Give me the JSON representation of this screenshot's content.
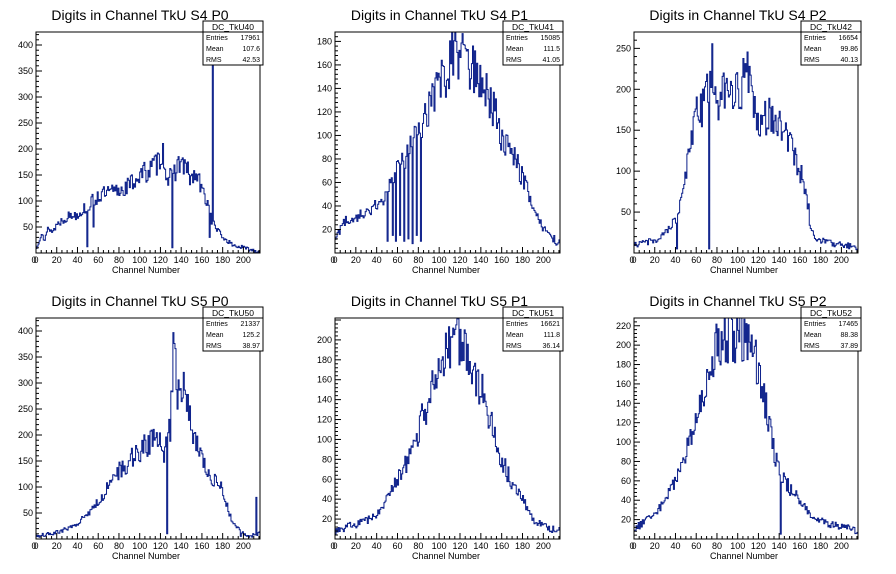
{
  "canvas": {
    "background": "#ffffff",
    "line_color": "#0b1f8a",
    "frame_color": "#000000"
  },
  "chart_data": [
    {
      "type": "histogram",
      "title": "Digits in Channel TkU S4 P0",
      "xlabel": "Channel Number",
      "ylabel": "",
      "xlim": [
        0,
        216
      ],
      "ylim": [
        0,
        425
      ],
      "xticks": [
        0,
        20,
        40,
        60,
        80,
        100,
        120,
        140,
        160,
        180,
        200
      ],
      "yticks": [
        50,
        100,
        150,
        200,
        250,
        300,
        350,
        400
      ],
      "stats": {
        "name": "DC_TkU40",
        "rows": [
          [
            "Entries",
            "17961"
          ],
          [
            "Mean",
            "107.6"
          ],
          [
            "RMS",
            "42.53"
          ]
        ]
      },
      "control_points": [
        [
          0,
          5
        ],
        [
          4,
          30
        ],
        [
          6,
          45
        ],
        [
          8,
          20
        ],
        [
          12,
          50
        ],
        [
          16,
          40
        ],
        [
          20,
          55
        ],
        [
          30,
          70
        ],
        [
          40,
          75
        ],
        [
          50,
          90
        ],
        [
          60,
          110
        ],
        [
          70,
          115
        ],
        [
          80,
          120
        ],
        [
          90,
          130
        ],
        [
          100,
          150
        ],
        [
          110,
          160
        ],
        [
          118,
          175
        ],
        [
          122,
          200
        ],
        [
          126,
          150
        ],
        [
          131,
          140
        ],
        [
          136,
          170
        ],
        [
          140,
          175
        ],
        [
          145,
          160
        ],
        [
          150,
          140
        ],
        [
          155,
          150
        ],
        [
          160,
          120
        ],
        [
          165,
          100
        ],
        [
          170,
          60
        ],
        [
          175,
          45
        ],
        [
          180,
          30
        ],
        [
          190,
          15
        ],
        [
          200,
          10
        ],
        [
          210,
          5
        ],
        [
          216,
          2
        ]
      ],
      "spikes": [
        [
          49,
          12
        ],
        [
          55,
          50
        ],
        [
          131,
          10
        ],
        [
          167,
          30
        ],
        [
          170,
          405
        ]
      ]
    },
    {
      "type": "histogram",
      "title": "Digits in Channel TkU S4 P1",
      "xlabel": "Channel Number",
      "ylabel": "",
      "xlim": [
        0,
        216
      ],
      "ylim": [
        0,
        188
      ],
      "xticks": [
        0,
        20,
        40,
        60,
        80,
        100,
        120,
        140,
        160,
        180,
        200
      ],
      "yticks": [
        20,
        40,
        60,
        80,
        100,
        120,
        140,
        160,
        180
      ],
      "stats": {
        "name": "DC_TkU41",
        "rows": [
          [
            "Entries",
            "15085"
          ],
          [
            "Mean",
            "111.5"
          ],
          [
            "RMS",
            "41.05"
          ]
        ]
      },
      "control_points": [
        [
          0,
          10
        ],
        [
          5,
          20
        ],
        [
          10,
          28
        ],
        [
          20,
          30
        ],
        [
          30,
          35
        ],
        [
          40,
          40
        ],
        [
          50,
          50
        ],
        [
          60,
          70
        ],
        [
          70,
          85
        ],
        [
          80,
          100
        ],
        [
          90,
          120
        ],
        [
          100,
          140
        ],
        [
          110,
          160
        ],
        [
          115,
          180
        ],
        [
          120,
          165
        ],
        [
          130,
          160
        ],
        [
          140,
          145
        ],
        [
          150,
          130
        ],
        [
          160,
          100
        ],
        [
          170,
          85
        ],
        [
          180,
          65
        ],
        [
          190,
          40
        ],
        [
          200,
          20
        ],
        [
          210,
          12
        ],
        [
          216,
          8
        ]
      ],
      "spikes": [
        [
          50,
          10
        ],
        [
          55,
          15
        ],
        [
          58,
          10
        ],
        [
          62,
          15
        ],
        [
          66,
          10
        ],
        [
          70,
          12
        ],
        [
          74,
          8
        ],
        [
          78,
          15
        ],
        [
          82,
          10
        ]
      ]
    },
    {
      "type": "histogram",
      "title": "Digits in Channel TkU S4 P2",
      "xlabel": "Channel Number",
      "ylabel": "",
      "xlim": [
        0,
        216
      ],
      "ylim": [
        0,
        270
      ],
      "xticks": [
        0,
        20,
        40,
        60,
        80,
        100,
        120,
        140,
        160,
        180,
        200
      ],
      "yticks": [
        50,
        100,
        150,
        200,
        250
      ],
      "stats": {
        "name": "DC_TkU42",
        "rows": [
          [
            "Entries",
            "16654"
          ],
          [
            "Mean",
            "99.86"
          ],
          [
            "RMS",
            "40.13"
          ]
        ]
      },
      "control_points": [
        [
          0,
          10
        ],
        [
          10,
          12
        ],
        [
          20,
          15
        ],
        [
          30,
          25
        ],
        [
          40,
          40
        ],
        [
          45,
          60
        ],
        [
          50,
          100
        ],
        [
          55,
          130
        ],
        [
          60,
          180
        ],
        [
          65,
          170
        ],
        [
          70,
          200
        ],
        [
          75,
          230
        ],
        [
          80,
          180
        ],
        [
          90,
          200
        ],
        [
          100,
          195
        ],
        [
          110,
          220
        ],
        [
          120,
          150
        ],
        [
          130,
          170
        ],
        [
          140,
          160
        ],
        [
          150,
          140
        ],
        [
          160,
          100
        ],
        [
          165,
          80
        ],
        [
          170,
          30
        ],
        [
          175,
          20
        ],
        [
          180,
          15
        ],
        [
          190,
          12
        ],
        [
          200,
          10
        ],
        [
          210,
          8
        ],
        [
          216,
          5
        ]
      ],
      "spikes": [
        [
          41,
          5
        ],
        [
          72,
          5
        ],
        [
          168,
          60
        ],
        [
          170,
          30
        ]
      ]
    },
    {
      "type": "histogram",
      "title": "Digits in Channel TkU S5 P0",
      "xlabel": "Channel Number",
      "ylabel": "",
      "xlim": [
        0,
        216
      ],
      "ylim": [
        0,
        425
      ],
      "xticks": [
        0,
        20,
        40,
        60,
        80,
        100,
        120,
        140,
        160,
        180,
        200
      ],
      "yticks": [
        50,
        100,
        150,
        200,
        250,
        300,
        350,
        400
      ],
      "stats": {
        "name": "DC_TkU50",
        "rows": [
          [
            "Entries",
            "21337"
          ],
          [
            "Mean",
            "125.2"
          ],
          [
            "RMS",
            "38.97"
          ]
        ]
      },
      "control_points": [
        [
          0,
          5
        ],
        [
          10,
          8
        ],
        [
          20,
          12
        ],
        [
          30,
          20
        ],
        [
          40,
          30
        ],
        [
          50,
          50
        ],
        [
          60,
          70
        ],
        [
          70,
          100
        ],
        [
          80,
          130
        ],
        [
          90,
          150
        ],
        [
          100,
          170
        ],
        [
          110,
          185
        ],
        [
          118,
          200
        ],
        [
          122,
          150
        ],
        [
          126,
          190
        ],
        [
          130,
          220
        ],
        [
          133,
          410
        ],
        [
          136,
          250
        ],
        [
          140,
          300
        ],
        [
          145,
          280
        ],
        [
          150,
          210
        ],
        [
          155,
          190
        ],
        [
          160,
          150
        ],
        [
          170,
          120
        ],
        [
          180,
          100
        ],
        [
          185,
          60
        ],
        [
          190,
          30
        ],
        [
          195,
          20
        ],
        [
          200,
          10
        ],
        [
          205,
          5
        ],
        [
          210,
          8
        ],
        [
          216,
          10
        ]
      ],
      "spikes": [
        [
          126,
          10
        ],
        [
          197,
          5
        ],
        [
          212,
          80
        ]
      ]
    },
    {
      "type": "histogram",
      "title": "Digits in Channel TkU S5 P1",
      "xlabel": "Channel Number",
      "ylabel": "",
      "xlim": [
        0,
        216
      ],
      "ylim": [
        0,
        222
      ],
      "xticks": [
        0,
        20,
        40,
        60,
        80,
        100,
        120,
        140,
        160,
        180,
        200
      ],
      "yticks": [
        20,
        40,
        60,
        80,
        100,
        120,
        140,
        160,
        180,
        200
      ],
      "stats": {
        "name": "DC_TkU51",
        "rows": [
          [
            "Entries",
            "16621"
          ],
          [
            "Mean",
            "111.8"
          ],
          [
            "RMS",
            "36.14"
          ]
        ]
      },
      "control_points": [
        [
          0,
          8
        ],
        [
          10,
          12
        ],
        [
          20,
          15
        ],
        [
          30,
          18
        ],
        [
          40,
          25
        ],
        [
          50,
          40
        ],
        [
          60,
          60
        ],
        [
          70,
          80
        ],
        [
          80,
          110
        ],
        [
          90,
          140
        ],
        [
          100,
          175
        ],
        [
          110,
          195
        ],
        [
          115,
          205
        ],
        [
          120,
          200
        ],
        [
          125,
          195
        ],
        [
          130,
          180
        ],
        [
          140,
          150
        ],
        [
          150,
          120
        ],
        [
          160,
          80
        ],
        [
          170,
          55
        ],
        [
          180,
          40
        ],
        [
          190,
          20
        ],
        [
          200,
          12
        ],
        [
          210,
          10
        ],
        [
          216,
          8
        ]
      ],
      "spikes": []
    },
    {
      "type": "histogram",
      "title": "Digits in Channel TkU S5 P2",
      "xlabel": "Channel Number",
      "ylabel": "",
      "xlim": [
        0,
        216
      ],
      "ylim": [
        0,
        228
      ],
      "xticks": [
        0,
        20,
        40,
        60,
        80,
        100,
        120,
        140,
        160,
        180,
        200
      ],
      "yticks": [
        20,
        40,
        60,
        80,
        100,
        120,
        140,
        160,
        180,
        200,
        220
      ],
      "stats": {
        "name": "DC_TkU52",
        "rows": [
          [
            "Entries",
            "17465"
          ],
          [
            "Mean",
            "88.38"
          ],
          [
            "RMS",
            "37.89"
          ]
        ]
      },
      "control_points": [
        [
          0,
          10
        ],
        [
          10,
          18
        ],
        [
          20,
          25
        ],
        [
          30,
          40
        ],
        [
          40,
          60
        ],
        [
          50,
          90
        ],
        [
          60,
          120
        ],
        [
          70,
          170
        ],
        [
          80,
          200
        ],
        [
          90,
          210
        ],
        [
          100,
          210
        ],
        [
          110,
          205
        ],
        [
          120,
          180
        ],
        [
          125,
          150
        ],
        [
          130,
          120
        ],
        [
          135,
          90
        ],
        [
          140,
          70
        ],
        [
          145,
          60
        ],
        [
          150,
          55
        ],
        [
          160,
          40
        ],
        [
          170,
          25
        ],
        [
          180,
          20
        ],
        [
          190,
          15
        ],
        [
          200,
          12
        ],
        [
          210,
          10
        ],
        [
          216,
          8
        ]
      ],
      "spikes": [
        [
          141,
          5
        ],
        [
          150,
          45
        ]
      ]
    }
  ]
}
